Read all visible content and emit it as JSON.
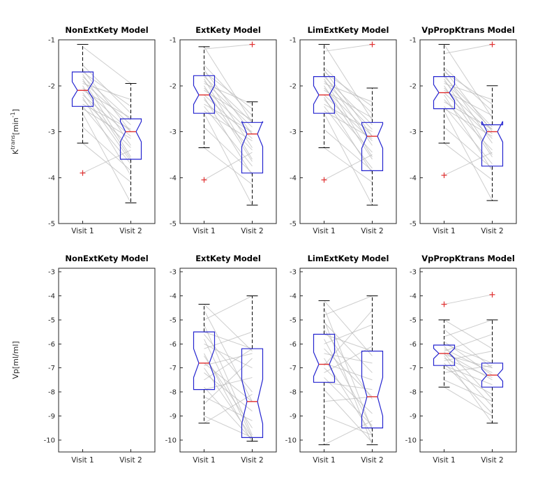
{
  "figure": {
    "background": "#ffffff"
  },
  "colors": {
    "box": "#2424d0",
    "median": "#e03030",
    "outlier": "#e03030",
    "whisker": "#000000",
    "pair_line": "#b8b8b8",
    "axis": "#262626",
    "tick_label": "#262626",
    "title_text": "#000000"
  },
  "chart_data": {
    "type": "boxplot",
    "grid": "2 rows x 4 columns, paired notched boxplots with subject connector lines",
    "categories": [
      "Visit 1",
      "Visit 2"
    ],
    "rows": [
      {
        "ylabel_plain": "Ktrans[min-1]",
        "ylabel": [
          {
            "text": "K"
          },
          {
            "text": "trans",
            "sup": true
          },
          {
            "text": "[min"
          },
          {
            "text": "-1",
            "sup": true
          },
          {
            "text": "]"
          }
        ],
        "ylim": [
          -5,
          -1
        ],
        "yticks": [
          -1,
          -2,
          -3,
          -4,
          -5
        ],
        "subplots": [
          {
            "title": "NonExtKety Model",
            "boxes": [
              {
                "whisker_low": -3.25,
                "q1": -2.45,
                "median": -2.1,
                "q3": -1.7,
                "whisker_high": -1.1,
                "outliers": [
                  -3.9
                ]
              },
              {
                "whisker_low": -4.55,
                "q1": -3.6,
                "median": -3.0,
                "q3": -2.72,
                "whisker_high": -1.95,
                "outliers": []
              }
            ],
            "pairs": [
              [
                -1.15,
                -1.95
              ],
              [
                -1.55,
                -2.6
              ],
              [
                -1.65,
                -3.0
              ],
              [
                -1.7,
                -2.45
              ],
              [
                -1.75,
                -3.3
              ],
              [
                -1.8,
                -2.75
              ],
              [
                -1.85,
                -3.55
              ],
              [
                -1.9,
                -2.85
              ],
              [
                -1.95,
                -2.3
              ],
              [
                -2.0,
                -3.6
              ],
              [
                -2.05,
                -3.0
              ],
              [
                -2.1,
                -2.7
              ],
              [
                -2.15,
                -3.65
              ],
              [
                -2.2,
                -3.1
              ],
              [
                -2.25,
                -3.95
              ],
              [
                -2.3,
                -3.35
              ],
              [
                -2.4,
                -2.95
              ],
              [
                -2.45,
                -3.7
              ],
              [
                -2.5,
                -3.15
              ],
              [
                -2.6,
                -4.55
              ],
              [
                -2.9,
                -3.85
              ],
              [
                -3.25,
                -4.1
              ],
              [
                -3.9,
                -3.4
              ]
            ]
          },
          {
            "title": "ExtKety Model",
            "boxes": [
              {
                "whisker_low": -3.35,
                "q1": -2.6,
                "median": -2.2,
                "q3": -1.78,
                "whisker_high": -1.15,
                "outliers": [
                  -4.05
                ]
              },
              {
                "whisker_low": -4.6,
                "q1": -3.9,
                "median": -3.05,
                "q3": -2.8,
                "whisker_high": -2.35,
                "outliers": [
                  -1.1
                ]
              }
            ],
            "pairs": [
              [
                -1.15,
                -2.8
              ],
              [
                -1.2,
                -1.1
              ],
              [
                -1.55,
                -2.65
              ],
              [
                -1.65,
                -3.05
              ],
              [
                -1.7,
                -2.5
              ],
              [
                -1.75,
                -3.35
              ],
              [
                -1.8,
                -2.8
              ],
              [
                -1.85,
                -3.6
              ],
              [
                -1.9,
                -2.9
              ],
              [
                -1.95,
                -2.4
              ],
              [
                -2.0,
                -3.65
              ],
              [
                -2.05,
                -3.05
              ],
              [
                -2.1,
                -2.75
              ],
              [
                -2.2,
                -3.15
              ],
              [
                -2.25,
                -3.95
              ],
              [
                -2.3,
                -3.4
              ],
              [
                -2.4,
                -3.0
              ],
              [
                -2.45,
                -3.75
              ],
              [
                -2.55,
                -3.2
              ],
              [
                -2.6,
                -4.6
              ],
              [
                -2.9,
                -3.9
              ],
              [
                -3.35,
                -4.15
              ],
              [
                -4.05,
                -3.45
              ]
            ]
          },
          {
            "title": "LimExtKety Model",
            "boxes": [
              {
                "whisker_low": -3.35,
                "q1": -2.6,
                "median": -2.2,
                "q3": -1.8,
                "whisker_high": -1.1,
                "outliers": [
                  -4.05
                ]
              },
              {
                "whisker_low": -4.6,
                "q1": -3.85,
                "median": -3.1,
                "q3": -2.8,
                "whisker_high": -2.05,
                "outliers": [
                  -1.1
                ]
              }
            ],
            "pairs": [
              [
                -1.1,
                -2.75
              ],
              [
                -1.25,
                -1.1
              ],
              [
                -1.6,
                -2.6
              ],
              [
                -1.65,
                -3.1
              ],
              [
                -1.7,
                -2.45
              ],
              [
                -1.75,
                -3.3
              ],
              [
                -1.8,
                -2.85
              ],
              [
                -1.85,
                -3.55
              ],
              [
                -1.9,
                -2.95
              ],
              [
                -1.95,
                -2.35
              ],
              [
                -2.0,
                -3.6
              ],
              [
                -2.05,
                -3.1
              ],
              [
                -2.1,
                -2.7
              ],
              [
                -2.2,
                -3.2
              ],
              [
                -2.25,
                -3.9
              ],
              [
                -2.3,
                -3.45
              ],
              [
                -2.4,
                -3.0
              ],
              [
                -2.45,
                -3.8
              ],
              [
                -2.55,
                -3.15
              ],
              [
                -2.6,
                -4.6
              ],
              [
                -2.95,
                -3.85
              ],
              [
                -3.35,
                -4.1
              ],
              [
                -4.05,
                -3.5
              ]
            ]
          },
          {
            "title": "VpPropKtrans Model",
            "boxes": [
              {
                "whisker_low": -3.25,
                "q1": -2.5,
                "median": -2.15,
                "q3": -1.8,
                "whisker_high": -1.1,
                "outliers": [
                  -3.95
                ]
              },
              {
                "whisker_low": -4.5,
                "q1": -3.75,
                "median": -3.0,
                "q3": -2.85,
                "whisker_high": -2.0,
                "outliers": [
                  -1.1
                ]
              }
            ],
            "pairs": [
              [
                -1.1,
                -2.7
              ],
              [
                -1.3,
                -1.1
              ],
              [
                -1.6,
                -2.55
              ],
              [
                -1.65,
                -3.0
              ],
              [
                -1.7,
                -2.4
              ],
              [
                -1.75,
                -3.25
              ],
              [
                -1.8,
                -2.9
              ],
              [
                -1.85,
                -3.5
              ],
              [
                -1.9,
                -2.95
              ],
              [
                -1.95,
                -2.3
              ],
              [
                -2.0,
                -3.55
              ],
              [
                -2.05,
                -3.05
              ],
              [
                -2.1,
                -2.65
              ],
              [
                -2.15,
                -3.15
              ],
              [
                -2.2,
                -3.85
              ],
              [
                -2.3,
                -3.4
              ],
              [
                -2.35,
                -2.95
              ],
              [
                -2.45,
                -3.7
              ],
              [
                -2.5,
                -3.1
              ],
              [
                -2.55,
                -4.5
              ],
              [
                -2.9,
                -3.8
              ],
              [
                -3.25,
                -4.05
              ],
              [
                -3.95,
                -3.45
              ]
            ]
          }
        ]
      },
      {
        "ylabel_plain": "Vp[ml/ml]",
        "ylabel": [
          {
            "text": "Vp[ml/ml]"
          }
        ],
        "ylim": [
          -10.5,
          -2.85
        ],
        "yticks": [
          -3,
          -4,
          -5,
          -6,
          -7,
          -8,
          -9,
          -10
        ],
        "subplots": [
          {
            "title": "NonExtKety Model",
            "boxes": [],
            "pairs": []
          },
          {
            "title": "ExtKety Model",
            "boxes": [
              {
                "whisker_low": -9.3,
                "q1": -7.9,
                "median": -6.8,
                "q3": -5.5,
                "whisker_high": -4.35,
                "outliers": []
              },
              {
                "whisker_low": -10.05,
                "q1": -9.9,
                "median": -8.4,
                "q3": -6.2,
                "whisker_high": -4.0,
                "outliers": []
              }
            ],
            "pairs": [
              [
                -4.35,
                -6.3
              ],
              [
                -4.6,
                -8.4
              ],
              [
                -5.0,
                -4.0
              ],
              [
                -5.2,
                -9.8
              ],
              [
                -5.5,
                -6.2
              ],
              [
                -5.6,
                -8.0
              ],
              [
                -5.8,
                -9.9
              ],
              [
                -6.0,
                -7.0
              ],
              [
                -6.2,
                -5.5
              ],
              [
                -6.4,
                -10.1
              ],
              [
                -6.5,
                -9.5
              ],
              [
                -6.8,
                -8.4
              ],
              [
                -6.9,
                -6.4
              ],
              [
                -7.0,
                -9.9
              ],
              [
                -7.2,
                -8.8
              ],
              [
                -7.5,
                -6.2
              ],
              [
                -7.8,
                -10.0
              ],
              [
                -7.9,
                -7.4
              ],
              [
                -8.2,
                -9.2
              ],
              [
                -8.5,
                -6.6
              ],
              [
                -9.0,
                -9.9
              ],
              [
                -9.3,
                -8.1
              ]
            ]
          },
          {
            "title": "LimExtKety Model",
            "boxes": [
              {
                "whisker_low": -10.2,
                "q1": -7.6,
                "median": -6.85,
                "q3": -5.6,
                "whisker_high": -4.2,
                "outliers": []
              },
              {
                "whisker_low": -10.2,
                "q1": -9.5,
                "median": -8.2,
                "q3": -6.3,
                "whisker_high": -4.0,
                "outliers": []
              }
            ],
            "pairs": [
              [
                -4.2,
                -6.5
              ],
              [
                -4.5,
                -9.6
              ],
              [
                -4.8,
                -4.0
              ],
              [
                -5.0,
                -10.2
              ],
              [
                -5.1,
                -7.2
              ],
              [
                -5.4,
                -8.3
              ],
              [
                -5.6,
                -6.3
              ],
              [
                -5.8,
                -9.5
              ],
              [
                -6.0,
                -5.2
              ],
              [
                -6.2,
                -8.2
              ],
              [
                -6.4,
                -6.8
              ],
              [
                -6.6,
                -9.8
              ],
              [
                -6.8,
                -7.5
              ],
              [
                -6.9,
                -4.6
              ],
              [
                -7.0,
                -8.9
              ],
              [
                -7.2,
                -6.1
              ],
              [
                -7.4,
                -9.4
              ],
              [
                -7.6,
                -7.9
              ],
              [
                -7.9,
                -10.1
              ],
              [
                -8.4,
                -8.2
              ],
              [
                -9.0,
                -9.8
              ],
              [
                -10.2,
                -9.2
              ]
            ]
          },
          {
            "title": "VpPropKtrans Model",
            "boxes": [
              {
                "whisker_low": -7.8,
                "q1": -6.9,
                "median": -6.4,
                "q3": -6.05,
                "whisker_high": -5.0,
                "outliers": [
                  -4.35
                ]
              },
              {
                "whisker_low": -9.3,
                "q1": -7.8,
                "median": -7.3,
                "q3": -6.8,
                "whisker_high": -5.0,
                "outliers": [
                  -3.95
                ]
              }
            ],
            "pairs": [
              [
                -4.35,
                -3.95
              ],
              [
                -5.0,
                -6.2
              ],
              [
                -5.4,
                -7.0
              ],
              [
                -5.7,
                -5.0
              ],
              [
                -5.9,
                -7.3
              ],
              [
                -6.0,
                -6.8
              ],
              [
                -6.1,
                -8.3
              ],
              [
                -6.2,
                -7.2
              ],
              [
                -6.3,
                -5.6
              ],
              [
                -6.35,
                -7.5
              ],
              [
                -6.4,
                -8.6
              ],
              [
                -6.45,
                -7.0
              ],
              [
                -6.5,
                -9.3
              ],
              [
                -6.6,
                -7.4
              ],
              [
                -6.7,
                -6.3
              ],
              [
                -6.8,
                -8.9
              ],
              [
                -6.9,
                -7.7
              ],
              [
                -7.0,
                -8.1
              ],
              [
                -7.2,
                -6.9
              ],
              [
                -7.5,
                -8.4
              ],
              [
                -7.8,
                -9.0
              ]
            ]
          }
        ]
      }
    ]
  }
}
